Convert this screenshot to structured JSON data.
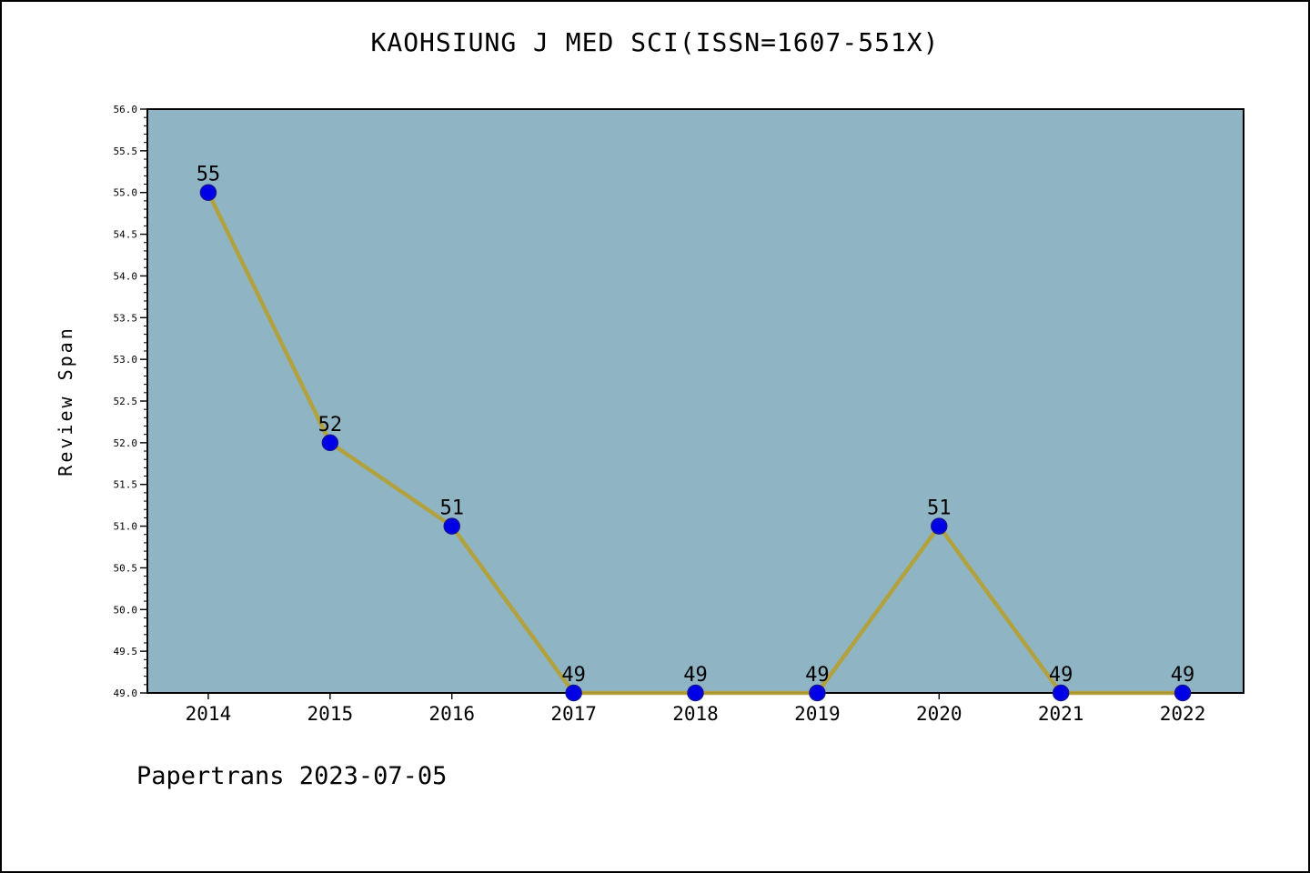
{
  "title": "KAOHSIUNG J MED SCI(ISSN=1607-551X)",
  "footer": "Papertrans 2023-07-05",
  "chart_data": {
    "type": "line",
    "title": "KAOHSIUNG J MED SCI(ISSN=1607-551X)",
    "xlabel": "",
    "ylabel": "Review Span",
    "categories": [
      "2014",
      "2015",
      "2016",
      "2017",
      "2018",
      "2019",
      "2020",
      "2021",
      "2022"
    ],
    "series": [
      {
        "name": "Review Span",
        "values": [
          55,
          52,
          51,
          49,
          49,
          49,
          51,
          49,
          49
        ]
      }
    ],
    "point_labels": [
      "55",
      "52",
      "51",
      "49",
      "49",
      "49",
      "51",
      "49",
      "49"
    ],
    "ylim": [
      49.0,
      56.0
    ],
    "ytick_step": 0.5,
    "yminor_step": 0.1,
    "grid": false,
    "legend_position": "none",
    "colors": {
      "line": "#b4a038",
      "marker_fill": "#0000e6",
      "marker_edge": "#14149b",
      "plot_background": "#8fb5c4",
      "page_background": "#ffffff",
      "text": "#000000",
      "axis": "#000000"
    }
  }
}
